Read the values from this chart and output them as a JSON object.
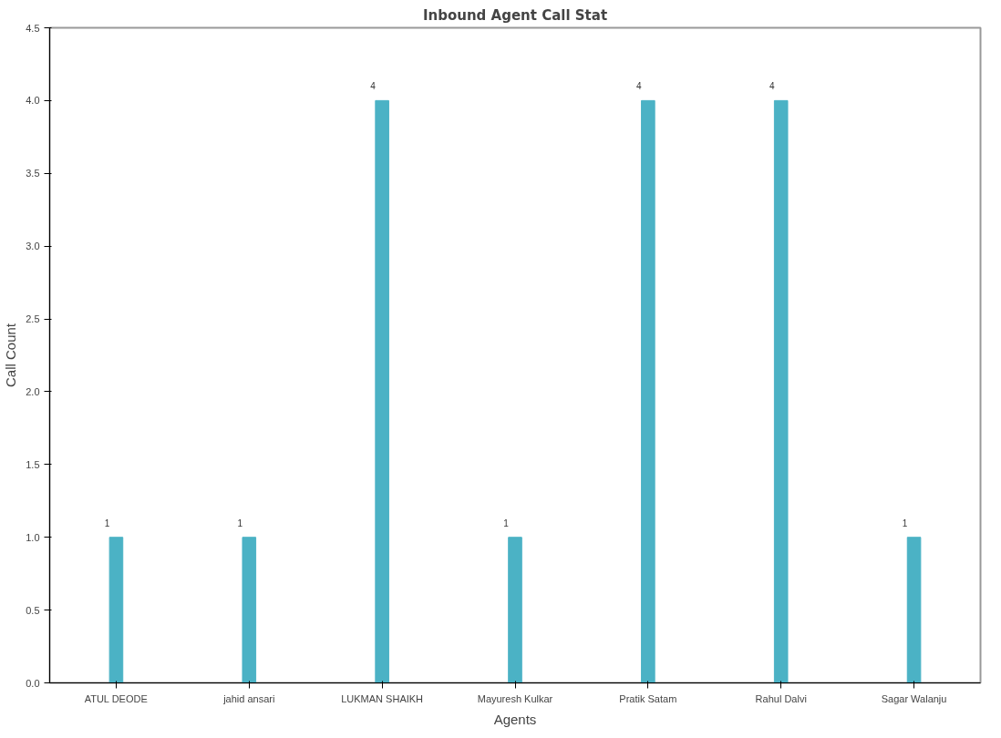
{
  "chart_data": {
    "type": "bar",
    "title": "Inbound Agent Call Stat",
    "xlabel": "Agents",
    "ylabel": "Call Count",
    "categories": [
      "ATUL DEODE",
      "jahid ansari",
      "LUKMAN SHAIKH",
      "Mayuresh Kulkar",
      "Pratik Satam",
      "Rahul Dalvi",
      "Sagar Walanju"
    ],
    "values": [
      1,
      1,
      4,
      1,
      4,
      4,
      1
    ],
    "color": "#4bb2c5",
    "data_labels": true,
    "grid": false,
    "ylim": [
      0,
      4.5
    ],
    "yticks": [
      {
        "value": 0,
        "label": "0.0"
      },
      {
        "value": 0.5,
        "label": "0.5"
      },
      {
        "value": 1,
        "label": "1.0"
      },
      {
        "value": 1.5,
        "label": "1.5"
      },
      {
        "value": 2,
        "label": "2.0"
      },
      {
        "value": 2.5,
        "label": "2.5"
      },
      {
        "value": 3,
        "label": "3.0"
      },
      {
        "value": 3.5,
        "label": "3.5"
      },
      {
        "value": 4,
        "label": "4.0"
      },
      {
        "value": 4.5,
        "label": "4.5"
      }
    ]
  }
}
